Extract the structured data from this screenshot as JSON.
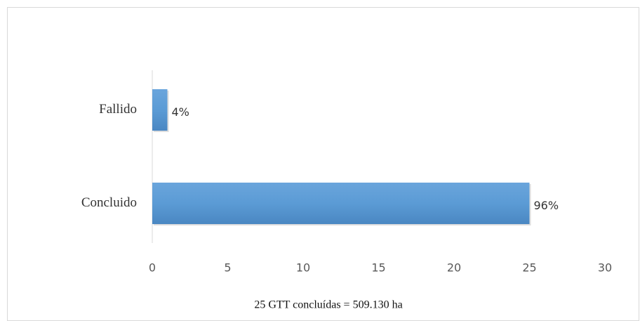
{
  "chart_data": {
    "type": "bar",
    "orientation": "horizontal",
    "categories": [
      "Fallido",
      "Concluido"
    ],
    "values": [
      1,
      25
    ],
    "value_labels": [
      "4%",
      "96%"
    ],
    "color": "#5b9bd5",
    "xlabel": "25 GTT concluídas = 509.130 ha",
    "xlim": [
      0,
      30
    ],
    "xticks": [
      0,
      5,
      10,
      15,
      20,
      25,
      30
    ]
  }
}
